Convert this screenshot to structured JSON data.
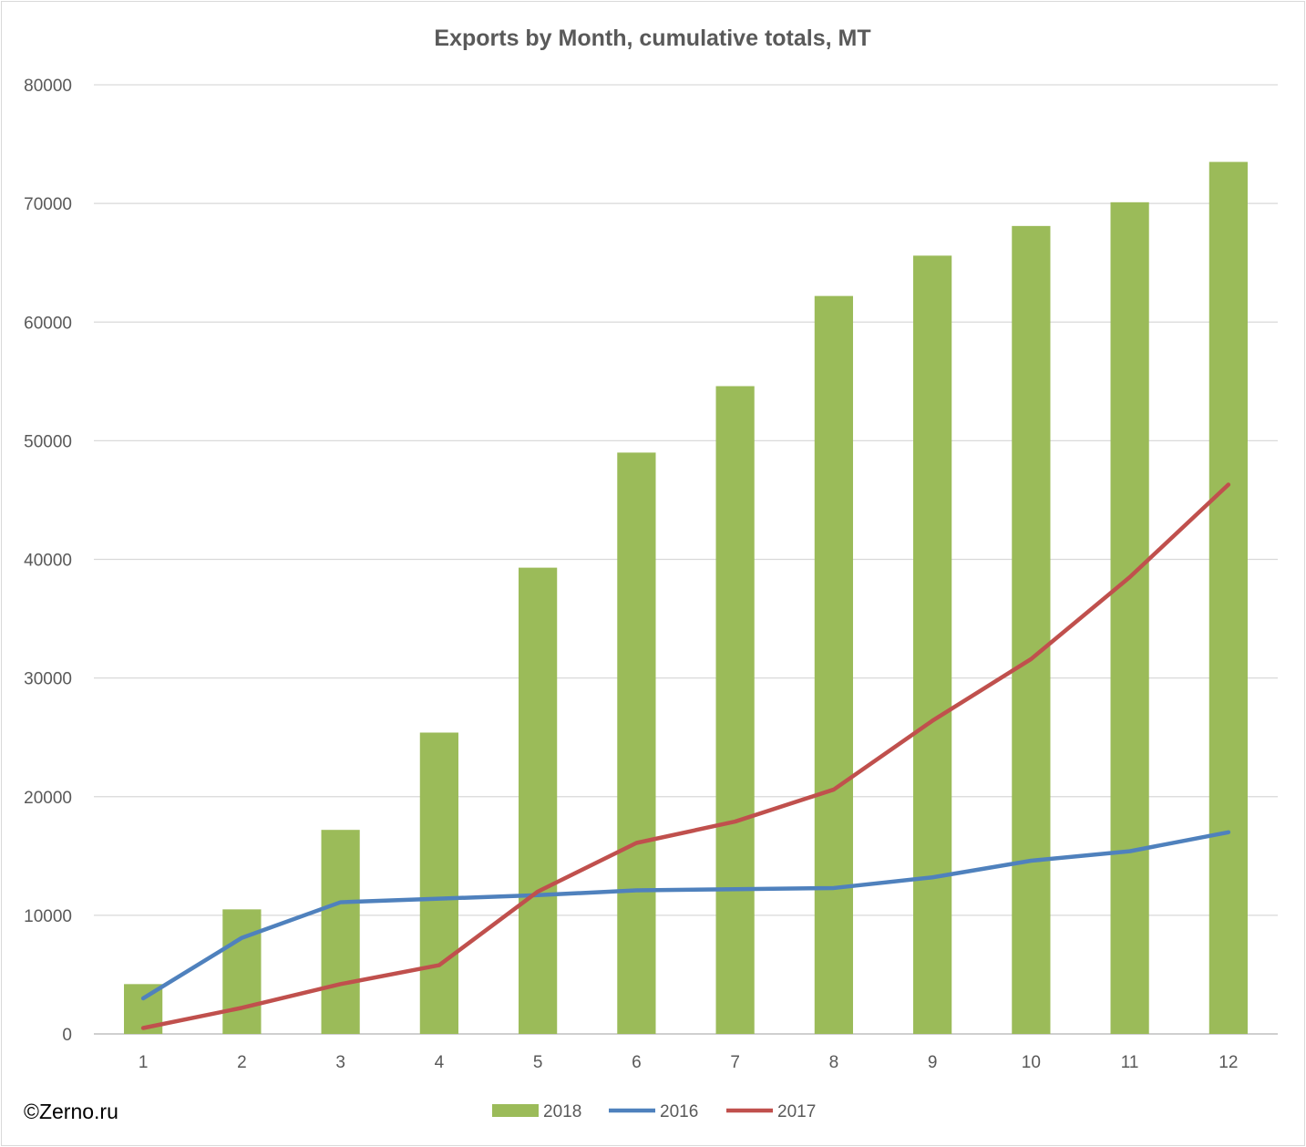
{
  "chart_data": {
    "type": "bar",
    "title": "Exports by Month, cumulative totals, MT",
    "xlabel": "",
    "ylabel": "",
    "categories": [
      "1",
      "2",
      "3",
      "4",
      "5",
      "6",
      "7",
      "8",
      "9",
      "10",
      "11",
      "12"
    ],
    "ylim": [
      0,
      80000
    ],
    "yticks": [
      0,
      10000,
      20000,
      30000,
      40000,
      50000,
      60000,
      70000,
      80000
    ],
    "ytick_labels": [
      "0",
      "10000",
      "20000",
      "30000",
      "40000",
      "50000",
      "60000",
      "70000",
      "80000"
    ],
    "grid": true,
    "legend_position": "bottom",
    "series": [
      {
        "name": "2018",
        "kind": "bar",
        "color": "#9BBB59",
        "values": [
          4200,
          10500,
          17200,
          25400,
          39300,
          49000,
          54600,
          62200,
          65600,
          68100,
          70100,
          73500
        ]
      },
      {
        "name": "2016",
        "kind": "line",
        "color": "#4F81BD",
        "values": [
          3000,
          8100,
          11100,
          11400,
          11700,
          12100,
          12200,
          12300,
          13200,
          14600,
          15400,
          17000
        ]
      },
      {
        "name": "2017",
        "kind": "line",
        "color": "#C0504D",
        "values": [
          500,
          2200,
          4200,
          5800,
          12000,
          16100,
          17900,
          20600,
          26400,
          31600,
          38500,
          46300
        ]
      }
    ]
  },
  "watermark": "©Zerno.ru",
  "colors": {
    "gridline": "#d9d9d9",
    "axis": "#bfbfbf",
    "text": "#595959"
  }
}
